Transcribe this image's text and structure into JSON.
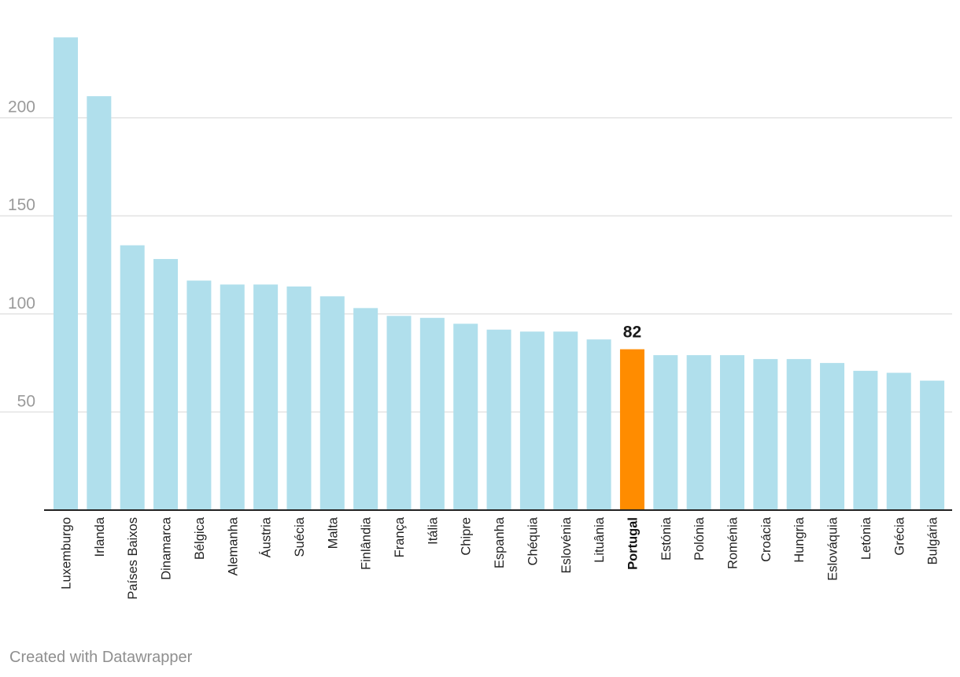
{
  "chart_data": {
    "type": "bar",
    "categories": [
      "Luxemburgo",
      "Irlanda",
      "Países Baixos",
      "Dinamarca",
      "Bélgica",
      "Alemanha",
      "Áustria",
      "Suécia",
      "Malta",
      "Finlândia",
      "França",
      "Itália",
      "Chipre",
      "Espanha",
      "Chéquia",
      "Eslovénia",
      "Lituânia",
      "Portugal",
      "Estónia",
      "Polónia",
      "Roménia",
      "Croácia",
      "Hungria",
      "Eslováquia",
      "Letónia",
      "Grécia",
      "Bulgária"
    ],
    "values": [
      241,
      211,
      135,
      128,
      117,
      115,
      115,
      114,
      109,
      103,
      99,
      98,
      95,
      92,
      91,
      91,
      87,
      82,
      79,
      79,
      79,
      77,
      77,
      75,
      71,
      70,
      66
    ],
    "highlight": "Portugal",
    "highlight_label": "82",
    "y_ticks": [
      "50",
      "100",
      "150",
      "200"
    ],
    "ylim": [
      0,
      250
    ],
    "colors": {
      "bar": "#b0dfec",
      "highlight": "#ff8c00",
      "grid": "#e3e3e3",
      "axis": "#222222"
    },
    "grid": true,
    "title": "",
    "xlabel": "",
    "ylabel": ""
  },
  "footer": {
    "credit": "Created with Datawrapper"
  }
}
